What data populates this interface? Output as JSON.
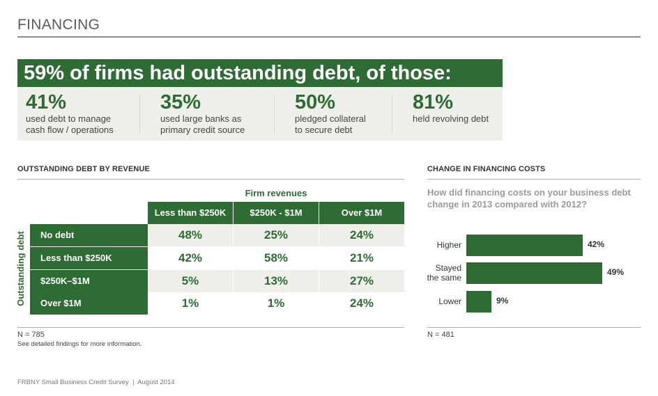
{
  "header": {
    "title": "FINANCING"
  },
  "highlight": {
    "headline": "59% of firms had outstanding debt, of those:",
    "stats": [
      {
        "value": "41%",
        "line1": "used debt to manage",
        "line2": "cash flow / operations"
      },
      {
        "value": "35%",
        "line1": "used large banks as",
        "line2": "primary credit source"
      },
      {
        "value": "50%",
        "line1": "pledged collateral",
        "line2": "to secure debt"
      },
      {
        "value": "81%",
        "line1": "held revolving debt",
        "line2": ""
      }
    ]
  },
  "left_panel": {
    "title": "OUTSTANDING DEBT BY REVENUE",
    "n_label": "N = 785",
    "note": "See detailed findings for more information."
  },
  "right_panel": {
    "title": "CHANGE IN FINANCING COSTS",
    "question": "How did financing costs on your business debt change in 2013 compared with 2012?",
    "n_label": "N = 481"
  },
  "chart_data": [
    {
      "type": "table",
      "column_group_label": "Firm revenues",
      "row_group_label": "Outstanding debt",
      "columns": [
        "Less than $250K",
        "$250K - $1M",
        "Over $1M"
      ],
      "rows": [
        {
          "label": "No debt",
          "values": [
            "48%",
            "25%",
            "24%"
          ]
        },
        {
          "label": "Less than $250K",
          "values": [
            "42%",
            "58%",
            "21%"
          ]
        },
        {
          "label": "$250K–$1M",
          "values": [
            "5%",
            "13%",
            "27%"
          ]
        },
        {
          "label": "Over $1M",
          "values": [
            "1%",
            "1%",
            "24%"
          ]
        }
      ]
    },
    {
      "type": "bar",
      "orientation": "horizontal",
      "categories": [
        "Higher",
        "Stayed the same",
        "Lower"
      ],
      "category_lines": [
        [
          "Higher"
        ],
        [
          "Stayed",
          "the same"
        ],
        [
          "Lower"
        ]
      ],
      "values": [
        42,
        49,
        9
      ],
      "value_labels": [
        "42%",
        "49%",
        "9%"
      ],
      "xlim": [
        0,
        49
      ],
      "bar_color": "#2e6b35"
    }
  ],
  "colors": {
    "accent": "#2e6b35",
    "shade": "#efefea",
    "muted_text": "#9a9a9a"
  },
  "footer": {
    "text": "FRBNY Small Business Credit Survey  |  August 2014"
  }
}
